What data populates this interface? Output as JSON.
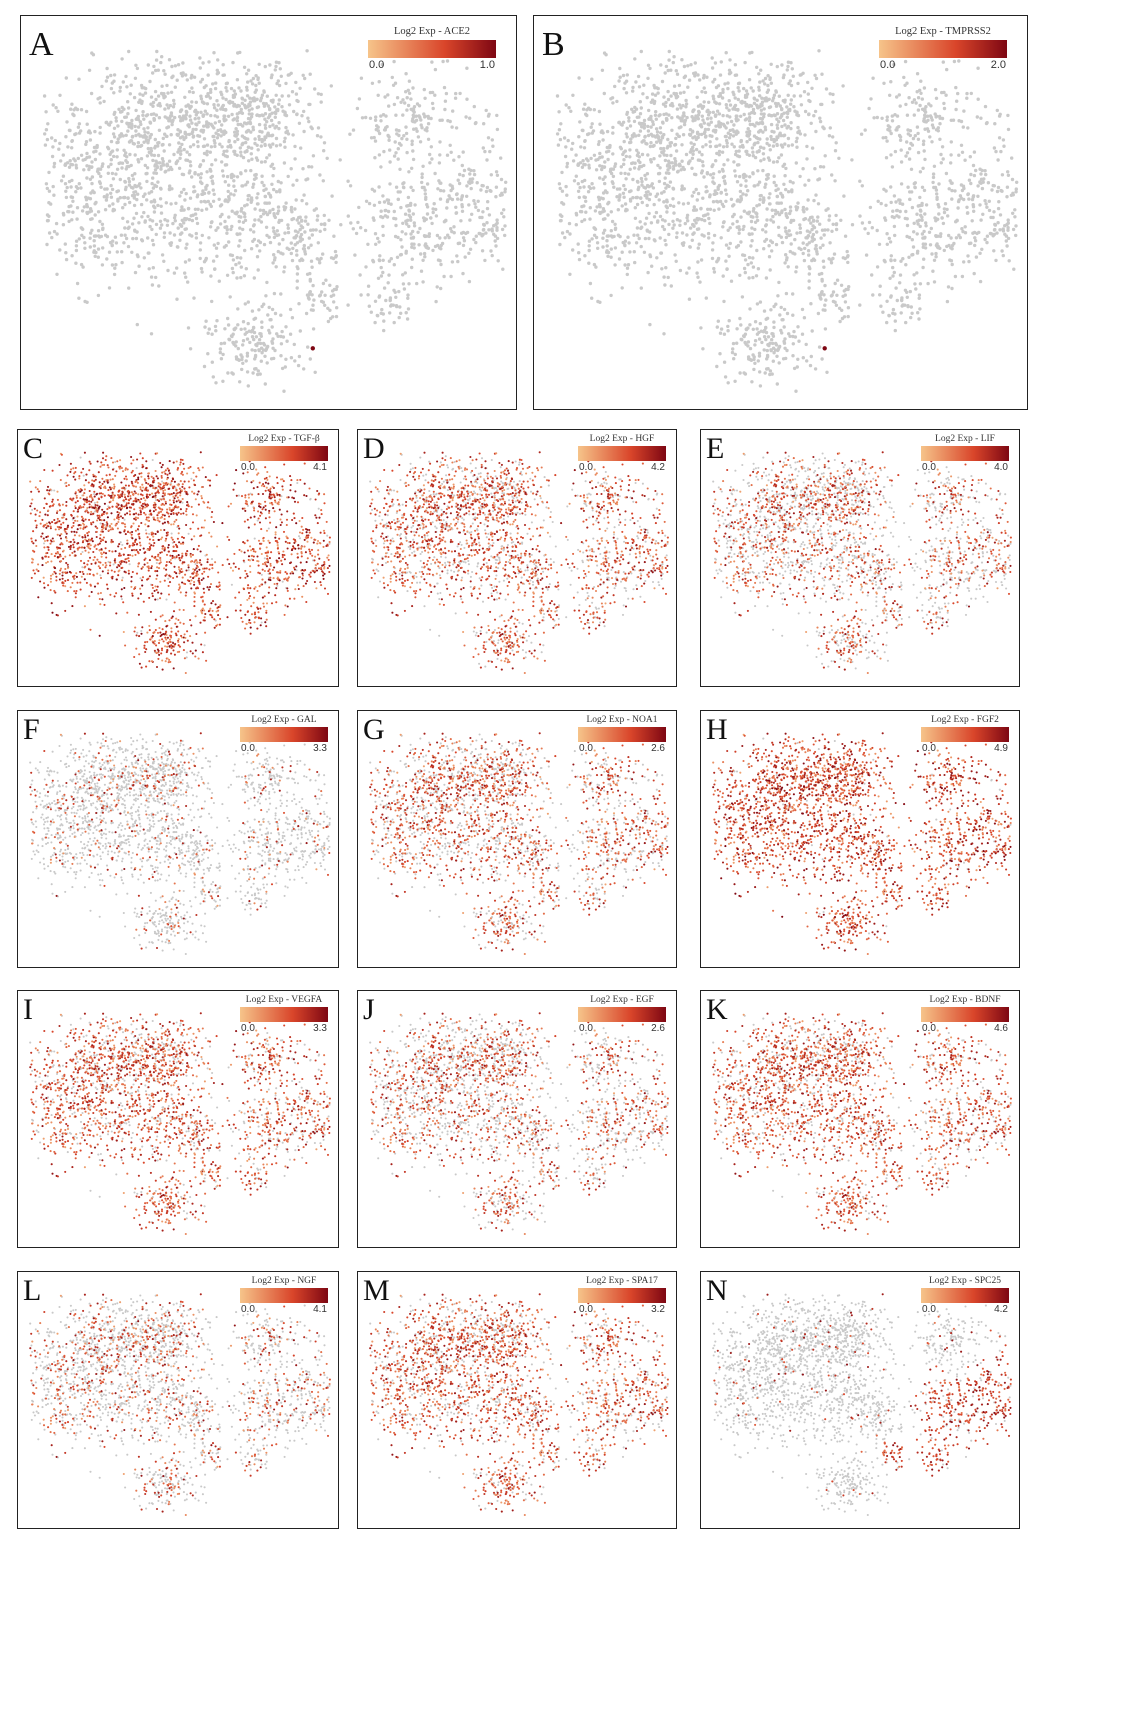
{
  "figure": {
    "colors": {
      "low": "#f6c48a",
      "mid": "#d9452a",
      "high": "#7e0713",
      "unexpressed": "#c9c9c9"
    },
    "colorbar_title_prefix": "Log2 Exp - "
  },
  "chart_data": [
    {
      "type": "scatter",
      "panel": "A",
      "gene": "ACE2",
      "colorbar_title": "Log2 Exp - ACE2",
      "color_range": [
        0.0,
        1.0
      ],
      "range_labels": [
        "0.0",
        "1.0"
      ],
      "expressing_fraction": 0.0005,
      "expression_pattern": "single cell"
    },
    {
      "type": "scatter",
      "panel": "B",
      "gene": "TMPRSS2",
      "colorbar_title": "Log2 Exp - TMPRSS2",
      "color_range": [
        0.0,
        2.0
      ],
      "range_labels": [
        "0.0",
        "2.0"
      ],
      "expressing_fraction": 0.0005,
      "expression_pattern": "single cell"
    },
    {
      "type": "scatter",
      "panel": "C",
      "gene": "TGF-β",
      "colorbar_title": "Log2 Exp - TGF-β",
      "color_range": [
        0.0,
        4.1
      ],
      "range_labels": [
        "0.0",
        "4.1"
      ],
      "expressing_fraction": 0.95,
      "expression_pattern": "ubiquitous"
    },
    {
      "type": "scatter",
      "panel": "D",
      "gene": "HGF",
      "colorbar_title": "Log2 Exp - HGF",
      "color_range": [
        0.0,
        4.2
      ],
      "range_labels": [
        "0.0",
        "4.2"
      ],
      "expressing_fraction": 0.7,
      "expression_pattern": "widespread"
    },
    {
      "type": "scatter",
      "panel": "E",
      "gene": "LIF",
      "colorbar_title": "Log2 Exp - LIF",
      "color_range": [
        0.0,
        4.0
      ],
      "range_labels": [
        "0.0",
        "4.0"
      ],
      "expressing_fraction": 0.5,
      "expression_pattern": "scattered"
    },
    {
      "type": "scatter",
      "panel": "F",
      "gene": "GAL",
      "colorbar_title": "Log2 Exp - GAL",
      "color_range": [
        0.0,
        3.3
      ],
      "range_labels": [
        "0.0",
        "3.3"
      ],
      "expressing_fraction": 0.18,
      "expression_pattern": "sparse"
    },
    {
      "type": "scatter",
      "panel": "G",
      "gene": "NOA1",
      "colorbar_title": "Log2 Exp - NOA1",
      "color_range": [
        0.0,
        2.6
      ],
      "range_labels": [
        "0.0",
        "2.6"
      ],
      "expressing_fraction": 0.6,
      "expression_pattern": "widespread"
    },
    {
      "type": "scatter",
      "panel": "H",
      "gene": "FGF2",
      "colorbar_title": "Log2 Exp - FGF2",
      "color_range": [
        0.0,
        4.9
      ],
      "range_labels": [
        "0.0",
        "4.9"
      ],
      "expressing_fraction": 0.97,
      "expression_pattern": "ubiquitous"
    },
    {
      "type": "scatter",
      "panel": "I",
      "gene": "VEGFA",
      "colorbar_title": "Log2 Exp - VEGFA",
      "color_range": [
        0.0,
        3.3
      ],
      "range_labels": [
        "0.0",
        "3.3"
      ],
      "expressing_fraction": 0.75,
      "expression_pattern": "widespread"
    },
    {
      "type": "scatter",
      "panel": "J",
      "gene": "EGF",
      "colorbar_title": "Log2 Exp - EGF",
      "color_range": [
        0.0,
        2.6
      ],
      "range_labels": [
        "0.0",
        "2.6"
      ],
      "expressing_fraction": 0.5,
      "expression_pattern": "scattered"
    },
    {
      "type": "scatter",
      "panel": "K",
      "gene": "BDNF",
      "colorbar_title": "Log2 Exp - BDNF",
      "color_range": [
        0.0,
        4.6
      ],
      "range_labels": [
        "0.0",
        "4.6"
      ],
      "expressing_fraction": 0.75,
      "expression_pattern": "widespread"
    },
    {
      "type": "scatter",
      "panel": "L",
      "gene": "NGF",
      "colorbar_title": "Log2 Exp - NGF",
      "color_range": [
        0.0,
        4.1
      ],
      "range_labels": [
        "0.0",
        "4.1"
      ],
      "expressing_fraction": 0.35,
      "expression_pattern": "scattered"
    },
    {
      "type": "scatter",
      "panel": "M",
      "gene": "SPA17",
      "colorbar_title": "Log2 Exp - SPA17",
      "color_range": [
        0.0,
        3.2
      ],
      "range_labels": [
        "0.0",
        "3.2"
      ],
      "expressing_fraction": 0.7,
      "expression_pattern": "widespread"
    },
    {
      "type": "scatter",
      "panel": "N",
      "gene": "SPC25",
      "colorbar_title": "Log2 Exp - SPC25",
      "color_range": [
        0.0,
        4.2
      ],
      "range_labels": [
        "0.0",
        "4.2"
      ],
      "expressing_fraction": 0.3,
      "expression_pattern": "right cluster"
    }
  ]
}
